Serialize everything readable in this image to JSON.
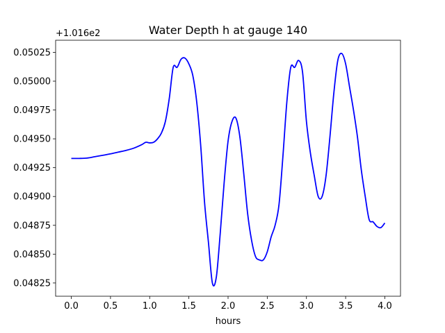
{
  "chart_data": {
    "type": "line",
    "title": "Water Depth h at gauge 140",
    "xlabel": "hours",
    "ylabel": "",
    "offset_text": "+1.016e2",
    "xlim": [
      -0.2,
      4.2
    ],
    "ylim": [
      0.048135,
      0.050355
    ],
    "xticks": [
      0.0,
      0.5,
      1.0,
      1.5,
      2.0,
      2.5,
      3.0,
      3.5,
      4.0
    ],
    "xtick_labels": [
      "0.0",
      "0.5",
      "1.0",
      "1.5",
      "2.0",
      "2.5",
      "3.0",
      "3.5",
      "4.0"
    ],
    "yticks": [
      0.04825,
      0.0485,
      0.04875,
      0.049,
      0.04925,
      0.0495,
      0.04975,
      0.05,
      0.05025
    ],
    "ytick_labels": [
      "0.04825",
      "0.04850",
      "0.04875",
      "0.04900",
      "0.04925",
      "0.04950",
      "0.04975",
      "0.05000",
      "0.05025"
    ],
    "grid": false,
    "series": [
      {
        "color": "#0000ff",
        "x": [
          0.0,
          0.1,
          0.2,
          0.3,
          0.4,
          0.5,
          0.6,
          0.7,
          0.8,
          0.9,
          0.95,
          1.0,
          1.05,
          1.1,
          1.15,
          1.2,
          1.25,
          1.3,
          1.35,
          1.4,
          1.45,
          1.5,
          1.55,
          1.6,
          1.65,
          1.7,
          1.75,
          1.8,
          1.85,
          1.9,
          1.95,
          2.0,
          2.05,
          2.1,
          2.15,
          2.2,
          2.25,
          2.3,
          2.35,
          2.4,
          2.45,
          2.5,
          2.55,
          2.6,
          2.65,
          2.7,
          2.75,
          2.8,
          2.85,
          2.9,
          2.95,
          3.0,
          3.05,
          3.1,
          3.15,
          3.2,
          3.25,
          3.3,
          3.35,
          3.4,
          3.45,
          3.5,
          3.55,
          3.6,
          3.65,
          3.7,
          3.75,
          3.8,
          3.85,
          3.9,
          3.95,
          4.0
        ],
        "y": [
          0.04933,
          0.04933,
          0.049333,
          0.049345,
          0.049357,
          0.04937,
          0.049385,
          0.0494,
          0.04942,
          0.04945,
          0.04947,
          0.049465,
          0.04947,
          0.0495,
          0.04955,
          0.04965,
          0.04985,
          0.05012,
          0.05012,
          0.05019,
          0.0502,
          0.05015,
          0.05005,
          0.04982,
          0.04945,
          0.04895,
          0.0486,
          0.04825,
          0.0483,
          0.04868,
          0.04912,
          0.04948,
          0.04965,
          0.04968,
          0.04952,
          0.0492,
          0.04885,
          0.04862,
          0.04848,
          0.04845,
          0.04845,
          0.04852,
          0.04865,
          0.04875,
          0.04893,
          0.04935,
          0.04982,
          0.05012,
          0.05012,
          0.05018,
          0.05008,
          0.04965,
          0.04938,
          0.04918,
          0.049,
          0.049,
          0.04918,
          0.04952,
          0.0499,
          0.05018,
          0.05024,
          0.05015,
          0.04995,
          0.04975,
          0.04952,
          0.04923,
          0.049,
          0.0488,
          0.04878,
          0.04874,
          0.04873,
          0.04877
        ]
      }
    ]
  }
}
